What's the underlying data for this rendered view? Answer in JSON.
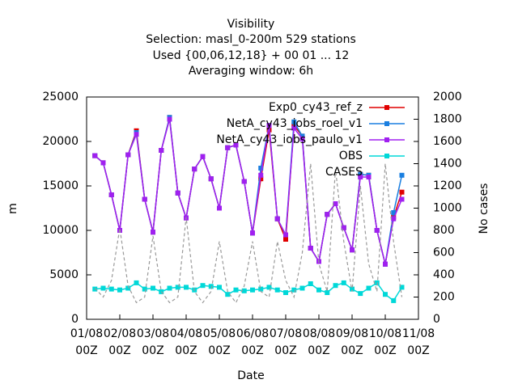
{
  "chart_data": {
    "type": "line",
    "title": [
      "Visibility",
      "Selection: masl_0-200m    529 stations",
      "Used {00,06,12,18} + 00 01 ... 12",
      "Averaging window:  6h"
    ],
    "x_label": "Date",
    "y_label": "m",
    "y2_label": "No cases",
    "x": [
      0.25,
      0.5,
      0.75,
      1,
      1.25,
      1.5,
      1.75,
      2,
      2.25,
      2.5,
      2.75,
      3,
      3.25,
      3.5,
      3.75,
      4,
      4.25,
      4.5,
      4.75,
      5,
      5.25,
      5.5,
      5.75,
      6,
      6.25,
      6.5,
      6.75,
      7,
      7.25,
      7.5,
      7.75,
      8,
      8.25,
      8.5,
      8.75,
      9,
      9.25,
      9.5
    ],
    "xlim": [
      0,
      10
    ],
    "xticks": [
      {
        "value": 0,
        "label": "01/08 00Z"
      },
      {
        "value": 1,
        "label": "02/08 00Z"
      },
      {
        "value": 2,
        "label": "03/08 00Z"
      },
      {
        "value": 3,
        "label": "04/08 00Z"
      },
      {
        "value": 4,
        "label": "05/08 00Z"
      },
      {
        "value": 5,
        "label": "06/08 00Z"
      },
      {
        "value": 6,
        "label": "07/08 00Z"
      },
      {
        "value": 7,
        "label": "08/08 00Z"
      },
      {
        "value": 8,
        "label": "09/08 00Z"
      },
      {
        "value": 9,
        "label": "10/08 00Z"
      },
      {
        "value": 10,
        "label": "11/08 00Z"
      }
    ],
    "ylim": [
      0,
      25000
    ],
    "yticks": [
      0,
      5000,
      10000,
      15000,
      20000,
      25000
    ],
    "y2lim": [
      0,
      2000
    ],
    "y2ticks": [
      0,
      200,
      400,
      600,
      800,
      1000,
      1200,
      1400,
      1600,
      1800,
      2000
    ],
    "legend": "upper right",
    "series": [
      {
        "name": "Exp0_cy43_ref_z",
        "color": "#e00000",
        "values": [
          18400,
          17600,
          14000,
          10000,
          18500,
          21200,
          13500,
          9800,
          19000,
          22700,
          14200,
          11400,
          16900,
          18300,
          15800,
          12500,
          19300,
          19600,
          15500,
          9700,
          15800,
          21300,
          11300,
          9000,
          21800,
          20600,
          8000,
          6500,
          11800,
          13000,
          10300,
          7800,
          16300,
          16200,
          10000,
          6200,
          11500,
          14300
        ]
      },
      {
        "name": "NetA_cy43_iobs_roel_v1",
        "color": "#1a7fe0",
        "values": [
          18400,
          17600,
          14000,
          10000,
          18500,
          21000,
          13500,
          9800,
          19000,
          22700,
          14200,
          11400,
          16900,
          18300,
          15800,
          12500,
          19300,
          19600,
          15500,
          9700,
          17000,
          21800,
          11300,
          9500,
          22200,
          20600,
          8000,
          6500,
          11800,
          13000,
          10300,
          7800,
          16300,
          16200,
          10000,
          6200,
          12000,
          16200
        ]
      },
      {
        "name": "NetA_cy43_iobs_paulo_v1",
        "color": "#a020f0",
        "values": [
          18400,
          17600,
          14000,
          10000,
          18500,
          20800,
          13500,
          9800,
          19000,
          22500,
          14200,
          11400,
          16900,
          18300,
          15800,
          12500,
          19300,
          19600,
          15500,
          9700,
          16200,
          21800,
          11300,
          9500,
          21500,
          20300,
          8000,
          6500,
          11800,
          13000,
          10300,
          7800,
          16000,
          16000,
          10000,
          6200,
          11300,
          13500
        ]
      },
      {
        "name": "OBS",
        "color": "#00d8d8",
        "values": [
          3400,
          3500,
          3400,
          3300,
          3500,
          4100,
          3400,
          3500,
          3100,
          3500,
          3600,
          3600,
          3300,
          3800,
          3700,
          3600,
          2800,
          3300,
          3200,
          3300,
          3400,
          3600,
          3300,
          3000,
          3300,
          3500,
          4000,
          3300,
          3000,
          3800,
          4100,
          3400,
          2900,
          3500,
          4100,
          2800,
          2100,
          3600
        ]
      },
      {
        "name": "CASES",
        "color": "#999999",
        "axis": "y2",
        "dashed": true,
        "values": [
          280,
          200,
          350,
          820,
          300,
          150,
          200,
          750,
          250,
          150,
          200,
          920,
          250,
          150,
          250,
          700,
          250,
          150,
          300,
          700,
          250,
          200,
          700,
          350,
          200,
          600,
          1400,
          500,
          250,
          1350,
          700,
          250,
          1200,
          500,
          250,
          1400,
          700,
          200
        ]
      }
    ]
  }
}
